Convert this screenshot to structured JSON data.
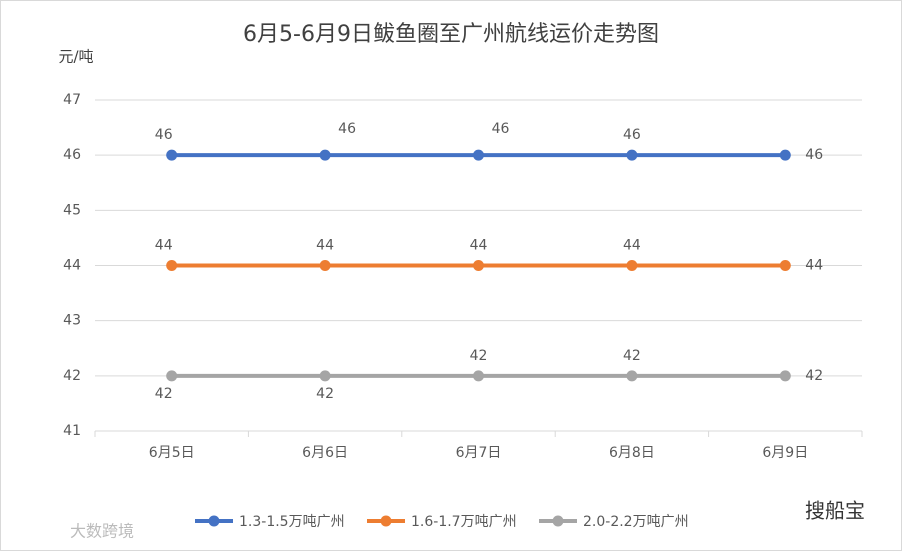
{
  "chart_data": {
    "type": "line",
    "title": "6月5-6月9日鲅鱼圈至广州航线运价走势图",
    "y_label": "元/吨",
    "categories": [
      "6月5日",
      "6月6日",
      "6月7日",
      "6月8日",
      "6月9日"
    ],
    "series": [
      {
        "name": "1.3-1.5万吨广州",
        "color": "#4472c4",
        "values": [
          46,
          46,
          46,
          46,
          46
        ]
      },
      {
        "name": "1.6-1.7万吨广州",
        "color": "#ed7d31",
        "values": [
          44,
          44,
          44,
          44,
          44
        ]
      },
      {
        "name": "2.0-2.2万吨广州",
        "color": "#a5a5a5",
        "values": [
          42,
          42,
          42,
          42,
          42
        ]
      }
    ],
    "ylim": [
      41,
      47
    ],
    "yticks": [
      41,
      42,
      43,
      44,
      45,
      46,
      47
    ],
    "grid": true,
    "legend": "bottom"
  },
  "watermarks": [
    "大数跨境",
    "搜船宝"
  ]
}
